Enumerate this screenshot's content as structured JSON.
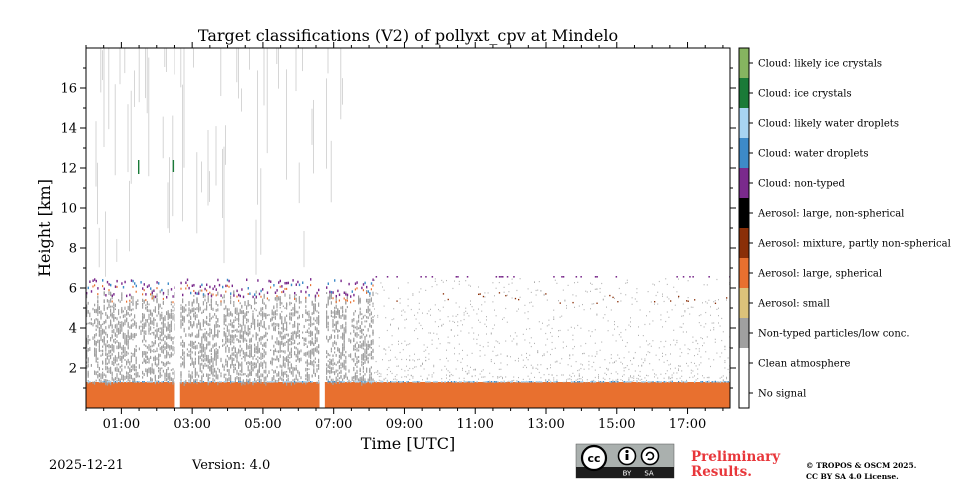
{
  "chart_data": {
    "type": "heatmap",
    "title": "Target classifications (V2) of pollyxt_cpv at Mindelo",
    "xlabel": "Time [UTC]",
    "ylabel": "Height [km]",
    "xlim_hours": [
      0,
      18.2
    ],
    "ylim_km": [
      0,
      18
    ],
    "xticks": [
      {
        "hour": 1,
        "label": "01:00"
      },
      {
        "hour": 3,
        "label": "03:00"
      },
      {
        "hour": 5,
        "label": "05:00"
      },
      {
        "hour": 7,
        "label": "07:00"
      },
      {
        "hour": 9,
        "label": "09:00"
      },
      {
        "hour": 11,
        "label": "11:00"
      },
      {
        "hour": 13,
        "label": "13:00"
      },
      {
        "hour": 15,
        "label": "15:00"
      },
      {
        "hour": 17,
        "label": "17:00"
      }
    ],
    "yticks": [
      {
        "km": 2,
        "label": "2"
      },
      {
        "km": 4,
        "label": "4"
      },
      {
        "km": 6,
        "label": "6"
      },
      {
        "km": 8,
        "label": "8"
      },
      {
        "km": 10,
        "label": "10"
      },
      {
        "km": 12,
        "label": "12"
      },
      {
        "km": 14,
        "label": "14"
      },
      {
        "km": 16,
        "label": "16"
      }
    ],
    "classes": [
      {
        "id": 0,
        "label": "No signal",
        "color": "#ffffff"
      },
      {
        "id": 1,
        "label": "Clean atmosphere",
        "color": "#ffffff"
      },
      {
        "id": 2,
        "label": "Non-typed particles/low conc.",
        "color": "#a0a0a0"
      },
      {
        "id": 3,
        "label": "Aerosol: small",
        "color": "#dcc27a"
      },
      {
        "id": 4,
        "label": "Aerosol: large, spherical",
        "color": "#e8702f"
      },
      {
        "id": 5,
        "label": "Aerosol: mixture, partly non-spherical",
        "color": "#8a2f08"
      },
      {
        "id": 6,
        "label": "Aerosol: large, non-spherical",
        "color": "#000000"
      },
      {
        "id": 7,
        "label": "Cloud: non-typed",
        "color": "#7a2a8c"
      },
      {
        "id": 8,
        "label": "Cloud: water droplets",
        "color": "#3d8ac8"
      },
      {
        "id": 9,
        "label": "Cloud: likely water droplets",
        "color": "#a8d4f2"
      },
      {
        "id": 10,
        "label": "Cloud: ice crystals",
        "color": "#1a7a38"
      },
      {
        "id": 11,
        "label": "Cloud: likely ice crystals",
        "color": "#86b460"
      }
    ],
    "no_data_gaps_hours": [
      [
        2.5,
        2.65
      ],
      [
        6.6,
        6.75
      ]
    ],
    "regions": [
      {
        "class": 4,
        "t": [
          0,
          18.2
        ],
        "h": [
          0,
          1.3
        ],
        "note": "boundary layer: large spherical aerosol"
      },
      {
        "class": 2,
        "t": [
          0,
          8.1
        ],
        "h": [
          1.3,
          6.2
        ],
        "note": "dense non-typed particles"
      },
      {
        "class": 7,
        "t": [
          0,
          8.0
        ],
        "h": [
          4.5,
          6.7
        ],
        "note": "cloud tops, non-typed"
      },
      {
        "class": 2,
        "t": [
          8.1,
          18.2
        ],
        "h": [
          1.3,
          6.5
        ],
        "note": "sparse non-typed particles"
      },
      {
        "class": 2,
        "t": [
          0,
          7.5
        ],
        "h": [
          6.5,
          17.5
        ],
        "note": "vertical streaks of non-typed particles"
      },
      {
        "class": 10,
        "t": [
          1.3,
          2.5
        ],
        "h": [
          11.7,
          12.4
        ],
        "note": "isolated ice crystals"
      }
    ]
  },
  "footer": {
    "date": "2025-12-21",
    "version": "Version: 4.0",
    "license_badge": {
      "cc": "cc",
      "by": "BY",
      "sa": "SA"
    },
    "preliminary_line1": "Preliminary",
    "preliminary_line2": "Results.",
    "copyright_line1": "© TROPOS & OSCM 2025.",
    "copyright_line2": "CC BY SA 4.0 License."
  },
  "colors": {
    "accent_red": "#e8363a"
  }
}
